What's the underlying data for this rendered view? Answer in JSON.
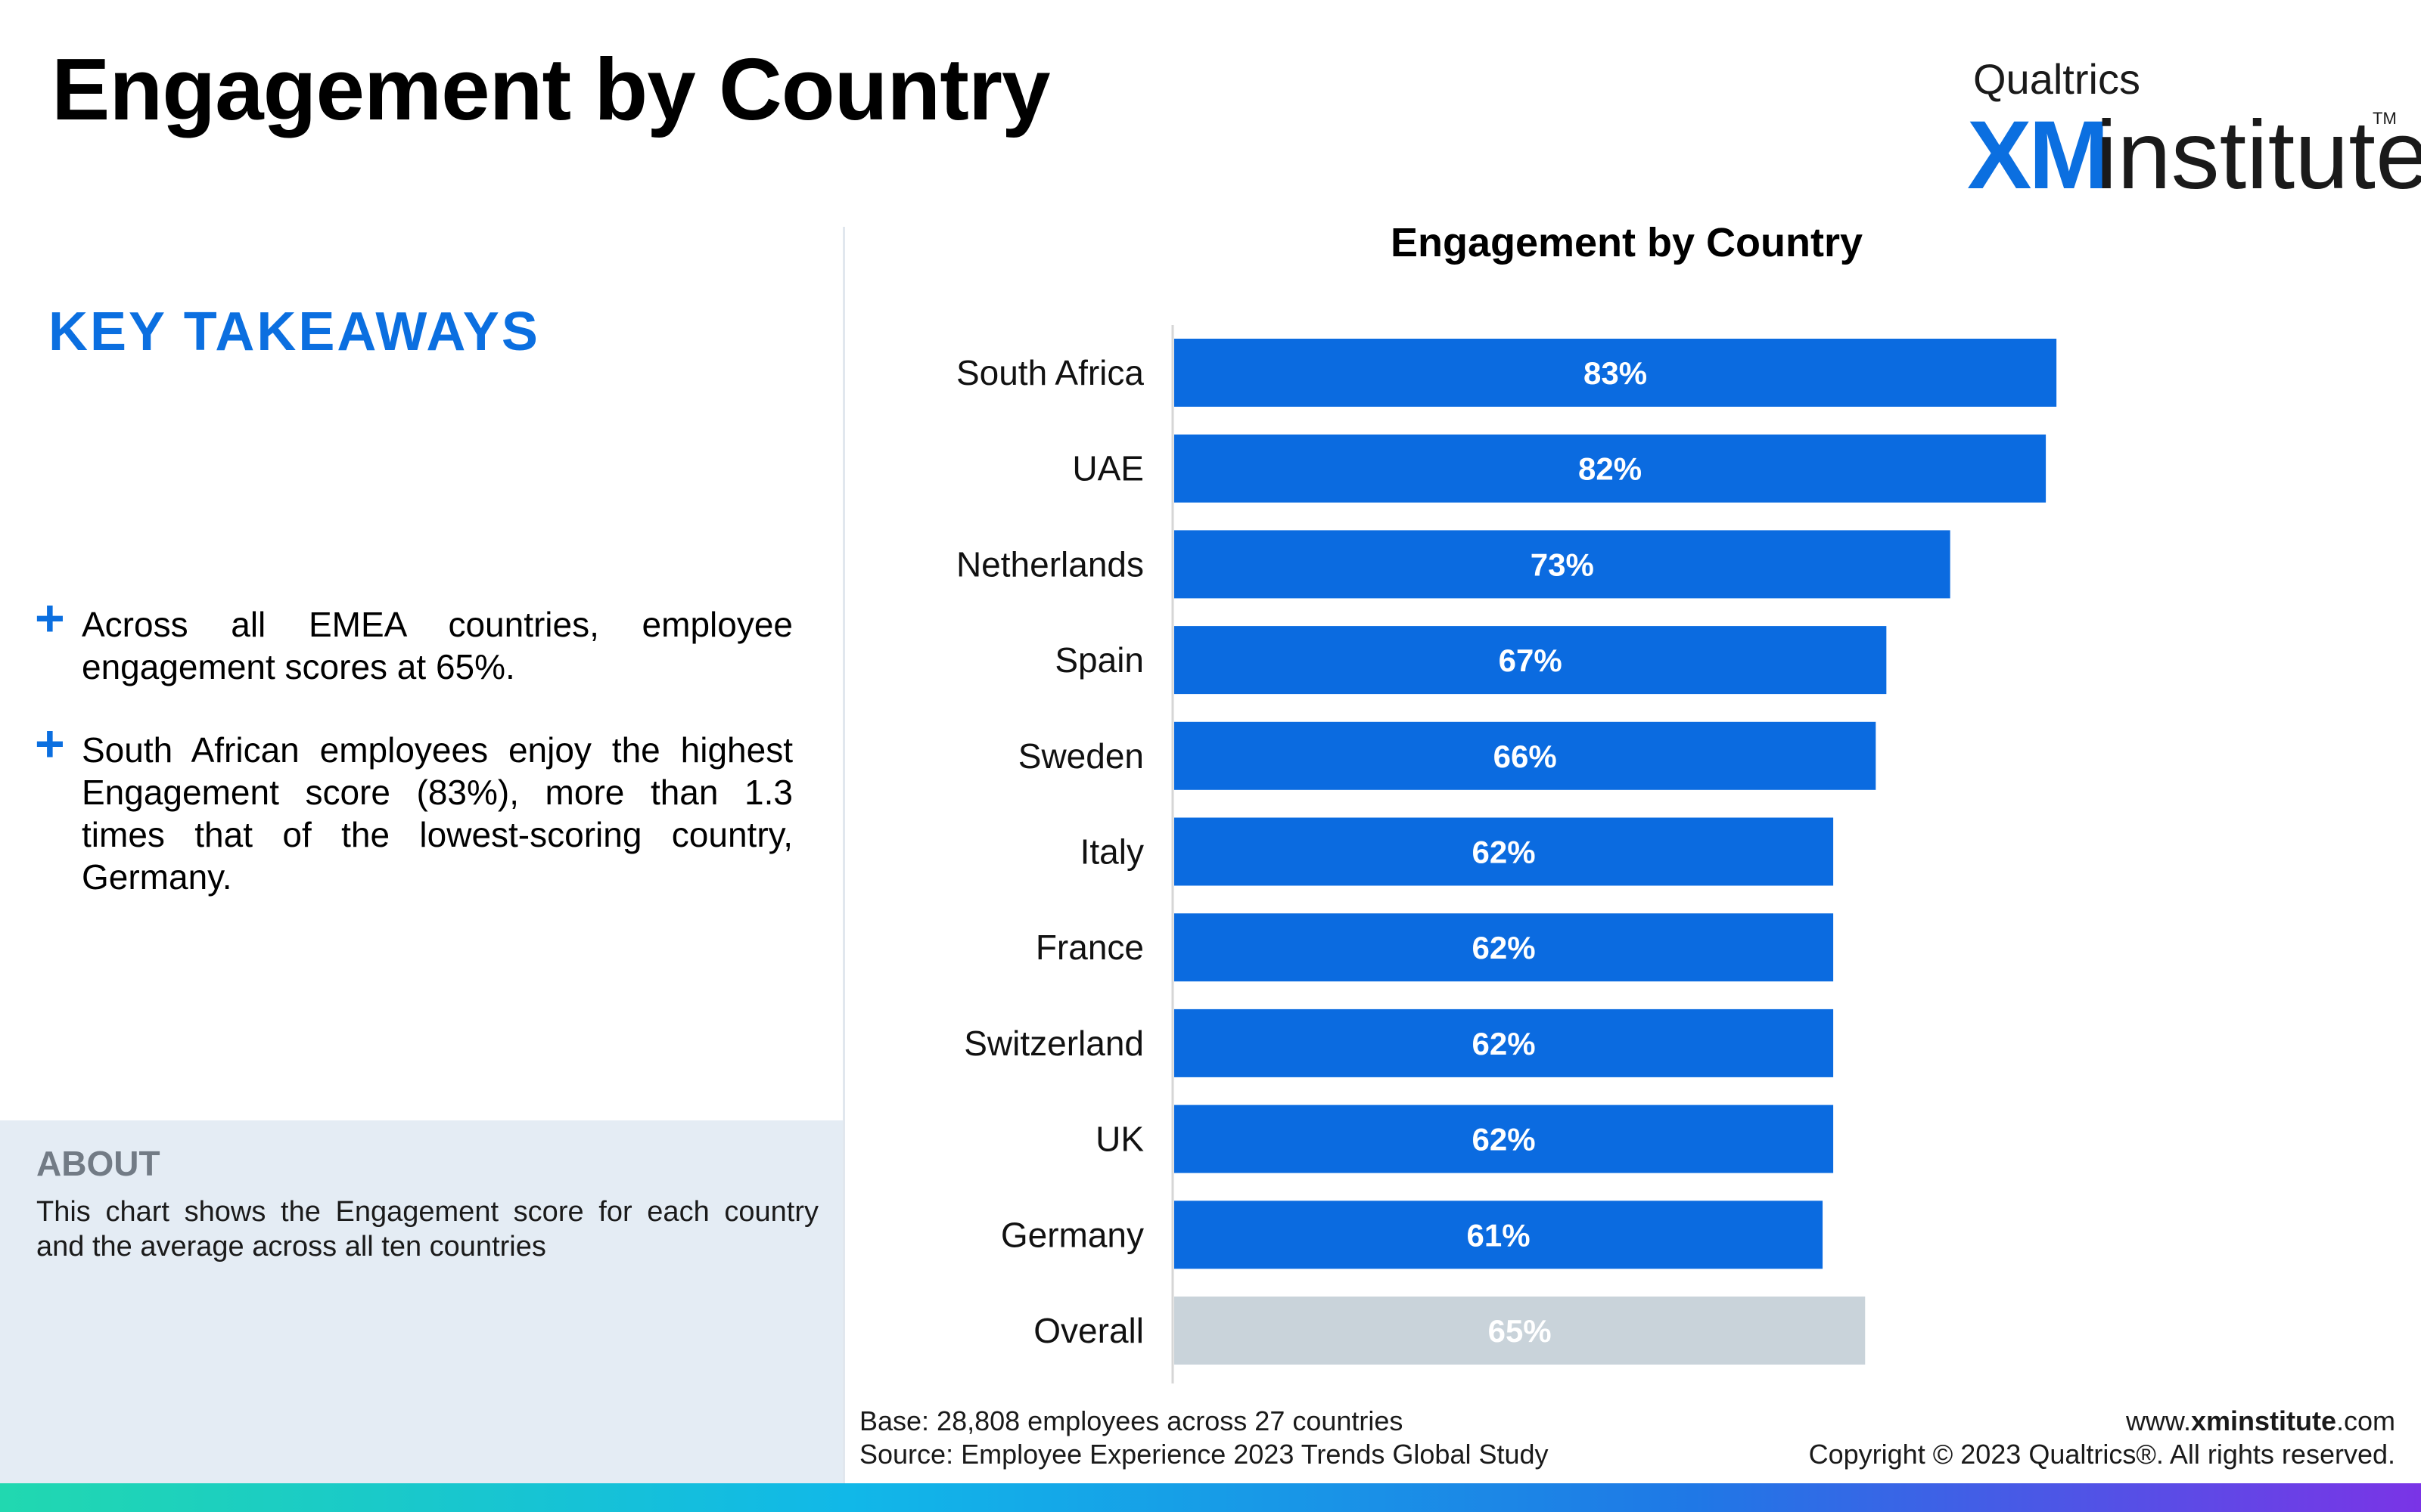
{
  "header": {
    "title": "Engagement by Country"
  },
  "logo": {
    "top_text": "Qualtrics",
    "xm": "XM",
    "institute": "institute",
    "tm": "TM"
  },
  "takeaways": {
    "title": "KEY TAKEAWAYS",
    "bullet_symbol": "+",
    "items": [
      "Across all EMEA countries, employee engagement scores at 65%.",
      "South African employees enjoy the highest Engagement score (83%), more than 1.3 times that of the lowest-scoring country, Germany."
    ]
  },
  "about": {
    "title": "ABOUT",
    "text": "This chart shows the Engagement score for each country and the average across all ten countries"
  },
  "footer": {
    "base": "Base: 28,808 employees across 27 countries",
    "source": "Source: Employee Experience 2023 Trends Global Study",
    "url_prefix": "www.",
    "url_bold": "xminstitute",
    "url_suffix": ".com",
    "copyright": "Copyright © 2023 Qualtrics®. All rights reserved."
  },
  "colors": {
    "accent": "#0b6fe0",
    "bar": "#0b6be0",
    "overall_bar": "#c9d3da"
  },
  "chart_data": {
    "type": "bar",
    "orientation": "horizontal",
    "title": "Engagement by Country",
    "categories": [
      "South Africa",
      "UAE",
      "Netherlands",
      "Spain",
      "Sweden",
      "Italy",
      "France",
      "Switzerland",
      "UK",
      "Germany",
      "Overall"
    ],
    "values": [
      83,
      82,
      73,
      67,
      66,
      62,
      62,
      62,
      62,
      61,
      65
    ],
    "data_labels": [
      "83%",
      "82%",
      "73%",
      "67%",
      "66%",
      "62%",
      "62%",
      "62%",
      "62%",
      "61%",
      "65%"
    ],
    "highlight": {
      "Overall": "#c9d3da"
    },
    "xlim": [
      0,
      100
    ],
    "grid": false,
    "legend": "none"
  }
}
